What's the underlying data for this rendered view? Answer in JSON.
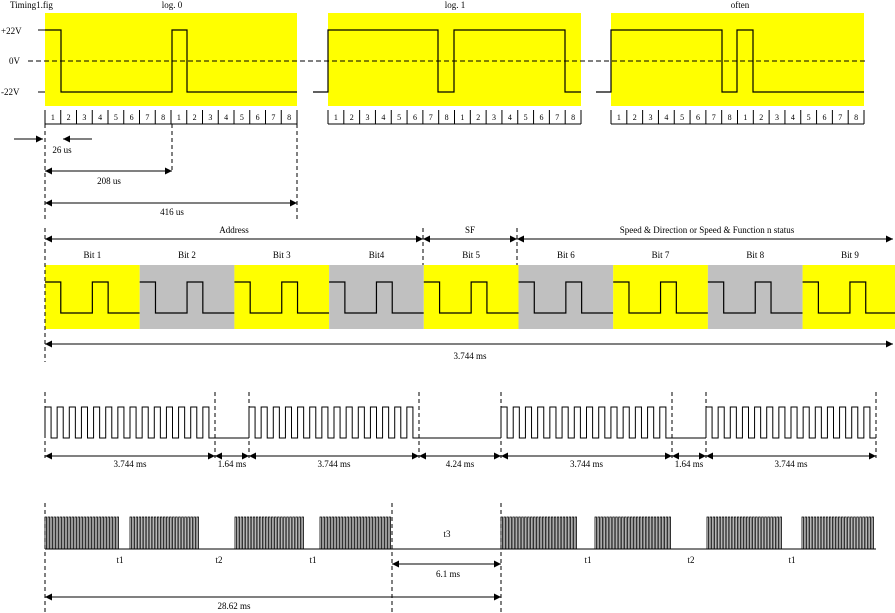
{
  "figure": {
    "filename": "Timing1.fig",
    "colors": {
      "highlight": "#ffff00",
      "gray": "#c0c0c0",
      "line": "#000000",
      "background": "#ffffff"
    },
    "top_panels": [
      "log. 0",
      "log. 1",
      "often"
    ],
    "voltage_labels": [
      "+22V",
      "0V",
      "-22V"
    ],
    "slot_numbers": [
      "1",
      "2",
      "3",
      "4",
      "5",
      "6",
      "7",
      "8"
    ],
    "dimensions": {
      "slot": "26 us",
      "half": "208 us",
      "full": "416 us"
    },
    "groups": [
      "Address",
      "SF",
      "Speed & Direction or Speed & Function n status"
    ],
    "bits": [
      "Bit 1",
      "Bit 2",
      "Bit 3",
      "Bit4",
      "Bit 5",
      "Bit 6",
      "Bit 7",
      "Bit 8",
      "Bit 9"
    ],
    "frame_duration": "3.744 ms",
    "packet_row": [
      "3.744 ms",
      "1.64 ms",
      "3.744 ms",
      "4.24 ms",
      "3.744 ms",
      "1.64 ms",
      "3.744 ms"
    ],
    "bottom_row": {
      "segments": [
        "t1",
        "t2",
        "t1",
        "t3",
        "t1",
        "t2",
        "t1"
      ],
      "t3_duration": "6.1 ms",
      "total": "28.62 ms"
    }
  }
}
